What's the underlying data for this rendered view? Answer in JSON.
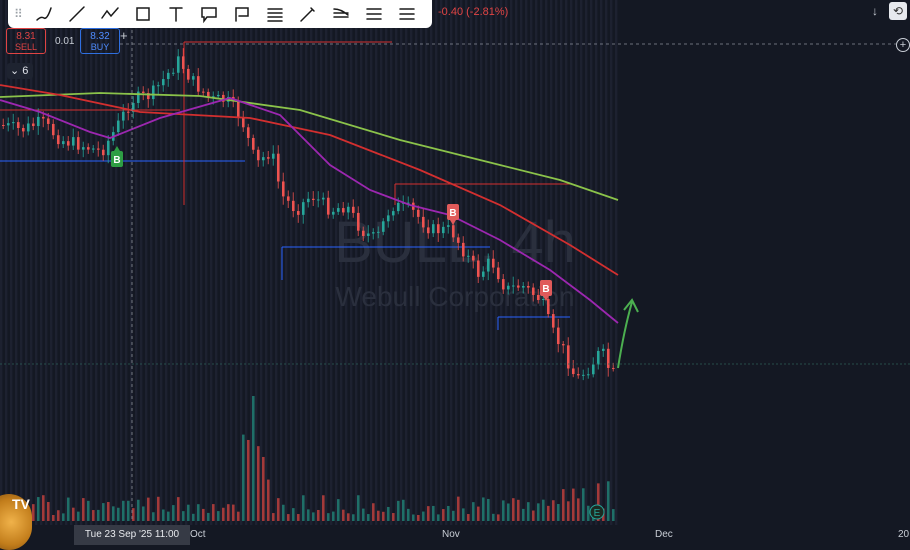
{
  "toolbar": {
    "tools": [
      "brush-icon",
      "trend-line-icon",
      "path-icon",
      "rectangle-icon",
      "text-icon",
      "callout-icon",
      "flag-note-icon",
      "fib-icon",
      "ray-icon",
      "pitchfork-icon",
      "levels-icon",
      "long-position-icon"
    ]
  },
  "header": {
    "price_change": "-0.40 (-2.81%)",
    "sell_price": "8.31",
    "sell_label": "SELL",
    "spread": "0.01",
    "buy_price": "8.32",
    "buy_label": "BUY",
    "indicator_count": "6"
  },
  "watermark": {
    "symbol": "BULL, 4h",
    "company": "Webull Corporation"
  },
  "axis": {
    "crosshair_label": "Tue 23 Sep '25   11:00",
    "x_labels": [
      "Oct",
      "Nov",
      "Dec",
      "20"
    ]
  },
  "colors": {
    "background": "#141823",
    "up": "#26a69a",
    "down": "#ef5350",
    "ma_green": "#8bc34a",
    "ma_red": "#d32f2f",
    "ma_purple": "#9c27b0",
    "level_blue": "#2962ff",
    "level_red": "#d32f2f",
    "arrow": "#4caf50"
  },
  "chart_data": {
    "type": "candlestick",
    "x": [
      "Tue 23 Sep '25",
      "Oct",
      "Nov",
      "Dec"
    ],
    "signals": [
      {
        "label": "B",
        "kind": "buy"
      },
      {
        "label": "B",
        "kind": "sell"
      },
      {
        "label": "B",
        "kind": "sell"
      }
    ],
    "earnings_marker": "E",
    "moving_averages": [
      "green",
      "red",
      "purple"
    ],
    "volume_bars": true
  }
}
